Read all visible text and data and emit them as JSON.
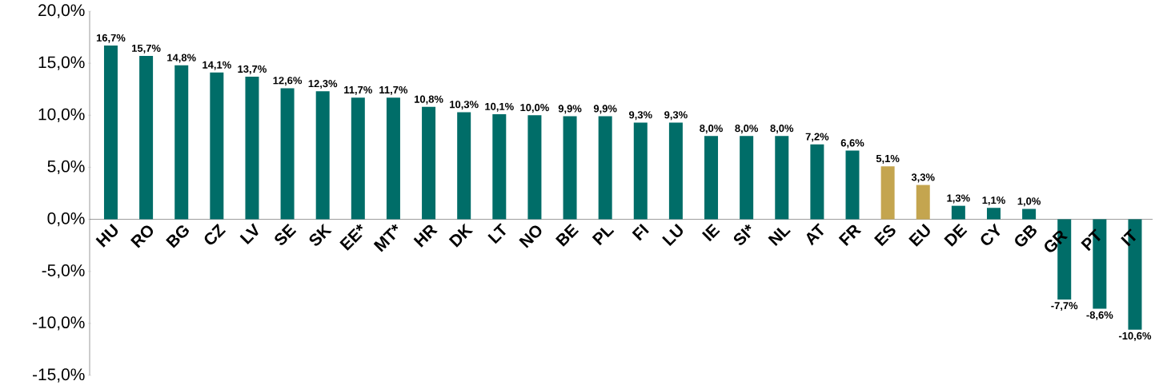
{
  "chart_data": {
    "type": "bar",
    "categories": [
      "HU",
      "RO",
      "BG",
      "CZ",
      "LV",
      "SE",
      "SK",
      "EE*",
      "MT*",
      "HR",
      "DK",
      "LT",
      "NO",
      "BE",
      "PL",
      "FI",
      "LU",
      "IE",
      "SI*",
      "NL",
      "AT",
      "FR",
      "ES",
      "EU",
      "DE",
      "CY",
      "GB",
      "GR",
      "PT",
      "IT"
    ],
    "values": [
      16.7,
      15.7,
      14.8,
      14.1,
      13.7,
      12.6,
      12.3,
      11.7,
      11.7,
      10.8,
      10.3,
      10.1,
      10.0,
      9.9,
      9.9,
      9.3,
      9.3,
      8.0,
      8.0,
      8.0,
      7.2,
      6.6,
      5.1,
      3.3,
      1.3,
      1.1,
      1.0,
      -7.7,
      -8.6,
      -10.6
    ],
    "value_labels": [
      "16,7%",
      "15,7%",
      "14,8%",
      "14,1%",
      "13,7%",
      "12,6%",
      "12,3%",
      "11,7%",
      "11,7%",
      "10,8%",
      "10,3%",
      "10,1%",
      "10,0%",
      "9,9%",
      "9,9%",
      "9,3%",
      "9,3%",
      "8,0%",
      "8,0%",
      "8,0%",
      "7,2%",
      "6,6%",
      "5,1%",
      "3,3%",
      "1,3%",
      "1,1%",
      "1,0%",
      "-7,7%",
      "-8,6%",
      "-10,6%"
    ],
    "colors": [
      "#006d68",
      "#006d68",
      "#006d68",
      "#006d68",
      "#006d68",
      "#006d68",
      "#006d68",
      "#006d68",
      "#006d68",
      "#006d68",
      "#006d68",
      "#006d68",
      "#006d68",
      "#006d68",
      "#006d68",
      "#006d68",
      "#006d68",
      "#006d68",
      "#006d68",
      "#006d68",
      "#006d68",
      "#006d68",
      "#c4a54f",
      "#c4a54f",
      "#006d68",
      "#006d68",
      "#006d68",
      "#006d68",
      "#006d68",
      "#006d68"
    ],
    "ylim": [
      -15,
      20
    ],
    "yticks": [
      {
        "value": -15,
        "label": "-15,0%"
      },
      {
        "value": -10,
        "label": "-10,0%"
      },
      {
        "value": -5,
        "label": "-5,0%"
      },
      {
        "value": 0,
        "label": "0,0%"
      },
      {
        "value": 5,
        "label": "5,0%"
      },
      {
        "value": 10,
        "label": "10,0%"
      },
      {
        "value": 15,
        "label": "15,0%"
      },
      {
        "value": 20,
        "label": "20,0%"
      }
    ]
  }
}
